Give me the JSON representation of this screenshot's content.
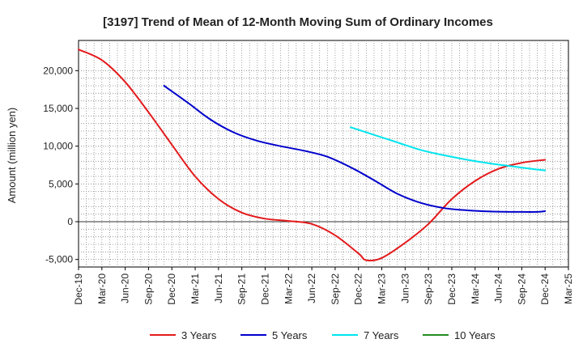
{
  "chart_data": {
    "type": "line",
    "title": "[3197]  Trend of Mean of 12-Month Moving Sum of Ordinary Incomes",
    "xlabel": "",
    "ylabel": "Amount (million yen)",
    "ylim": [
      -6000,
      24000
    ],
    "yticks": [
      -5000,
      0,
      5000,
      10000,
      15000,
      20000
    ],
    "ytick_labels": [
      "-5,000",
      "0",
      "5,000",
      "10,000",
      "15,000",
      "20,000"
    ],
    "xticks": [
      "Dec-19",
      "Mar-20",
      "Jun-20",
      "Sep-20",
      "Dec-20",
      "Mar-21",
      "Jun-21",
      "Sep-21",
      "Dec-21",
      "Mar-22",
      "Jun-22",
      "Sep-22",
      "Dec-22",
      "Mar-23",
      "Jun-23",
      "Sep-23",
      "Dec-23",
      "Mar-24",
      "Jun-24",
      "Sep-24",
      "Dec-24",
      "Mar-25"
    ],
    "x_unit": "months since Dec-19",
    "xlim": [
      0,
      63
    ],
    "grid": true,
    "legend_position": "bottom",
    "series": [
      {
        "name": "3 Years",
        "color": "#e41a1c",
        "x": [
          0,
          3,
          6,
          9,
          12,
          15,
          18,
          21,
          24,
          27,
          30,
          33,
          36,
          37,
          39,
          42,
          45,
          48,
          51,
          54,
          57,
          60
        ],
        "values": [
          22800,
          21400,
          18500,
          14500,
          10200,
          6000,
          3000,
          1200,
          400,
          100,
          -300,
          -1800,
          -4200,
          -5100,
          -4800,
          -2800,
          -300,
          3000,
          5400,
          7000,
          7800,
          8200
        ]
      },
      {
        "name": "5 Years",
        "color": "#0000cc",
        "x": [
          11,
          14,
          17,
          20,
          23,
          26,
          29,
          32,
          35,
          38,
          41,
          44,
          47,
          50,
          53,
          56,
          59,
          60
        ],
        "values": [
          18000,
          15800,
          13500,
          11800,
          10700,
          10000,
          9400,
          8600,
          7200,
          5500,
          3700,
          2500,
          1800,
          1500,
          1350,
          1300,
          1300,
          1400
        ]
      },
      {
        "name": "7 Years",
        "color": "#00e5ee",
        "x": [
          35,
          38,
          41,
          44,
          47,
          50,
          53,
          56,
          59,
          60
        ],
        "values": [
          12500,
          11500,
          10500,
          9500,
          8800,
          8200,
          7700,
          7300,
          6900,
          6800
        ]
      },
      {
        "name": "10 Years",
        "color": "#228b22",
        "x": [],
        "values": []
      }
    ]
  }
}
